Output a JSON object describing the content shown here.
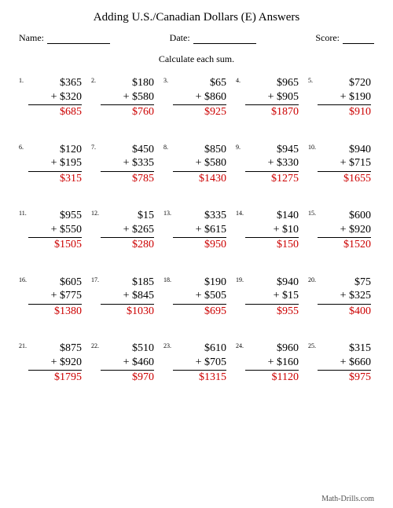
{
  "title": "Adding U.S./Canadian Dollars (E) Answers",
  "name_label": "Name:",
  "date_label": "Date:",
  "score_label": "Score:",
  "instruction": "Calculate each sum.",
  "footer": "Math-Drills.com",
  "problems": [
    {
      "n": "1.",
      "a": "$365",
      "b": "+ $320",
      "ans": "$685"
    },
    {
      "n": "2.",
      "a": "$180",
      "b": "+ $580",
      "ans": "$760"
    },
    {
      "n": "3.",
      "a": "$65",
      "b": "+ $860",
      "ans": "$925"
    },
    {
      "n": "4.",
      "a": "$965",
      "b": "+ $905",
      "ans": "$1870"
    },
    {
      "n": "5.",
      "a": "$720",
      "b": "+ $190",
      "ans": "$910"
    },
    {
      "n": "6.",
      "a": "$120",
      "b": "+ $195",
      "ans": "$315"
    },
    {
      "n": "7.",
      "a": "$450",
      "b": "+ $335",
      "ans": "$785"
    },
    {
      "n": "8.",
      "a": "$850",
      "b": "+ $580",
      "ans": "$1430"
    },
    {
      "n": "9.",
      "a": "$945",
      "b": "+ $330",
      "ans": "$1275"
    },
    {
      "n": "10.",
      "a": "$940",
      "b": "+ $715",
      "ans": "$1655"
    },
    {
      "n": "11.",
      "a": "$955",
      "b": "+ $550",
      "ans": "$1505"
    },
    {
      "n": "12.",
      "a": "$15",
      "b": "+ $265",
      "ans": "$280"
    },
    {
      "n": "13.",
      "a": "$335",
      "b": "+ $615",
      "ans": "$950"
    },
    {
      "n": "14.",
      "a": "$140",
      "b": "+ $10",
      "ans": "$150"
    },
    {
      "n": "15.",
      "a": "$600",
      "b": "+ $920",
      "ans": "$1520"
    },
    {
      "n": "16.",
      "a": "$605",
      "b": "+ $775",
      "ans": "$1380"
    },
    {
      "n": "17.",
      "a": "$185",
      "b": "+ $845",
      "ans": "$1030"
    },
    {
      "n": "18.",
      "a": "$190",
      "b": "+ $505",
      "ans": "$695"
    },
    {
      "n": "19.",
      "a": "$940",
      "b": "+ $15",
      "ans": "$955"
    },
    {
      "n": "20.",
      "a": "$75",
      "b": "+ $325",
      "ans": "$400"
    },
    {
      "n": "21.",
      "a": "$875",
      "b": "+ $920",
      "ans": "$1795"
    },
    {
      "n": "22.",
      "a": "$510",
      "b": "+ $460",
      "ans": "$970"
    },
    {
      "n": "23.",
      "a": "$610",
      "b": "+ $705",
      "ans": "$1315"
    },
    {
      "n": "24.",
      "a": "$960",
      "b": "+ $160",
      "ans": "$1120"
    },
    {
      "n": "25.",
      "a": "$315",
      "b": "+ $660",
      "ans": "$975"
    }
  ]
}
